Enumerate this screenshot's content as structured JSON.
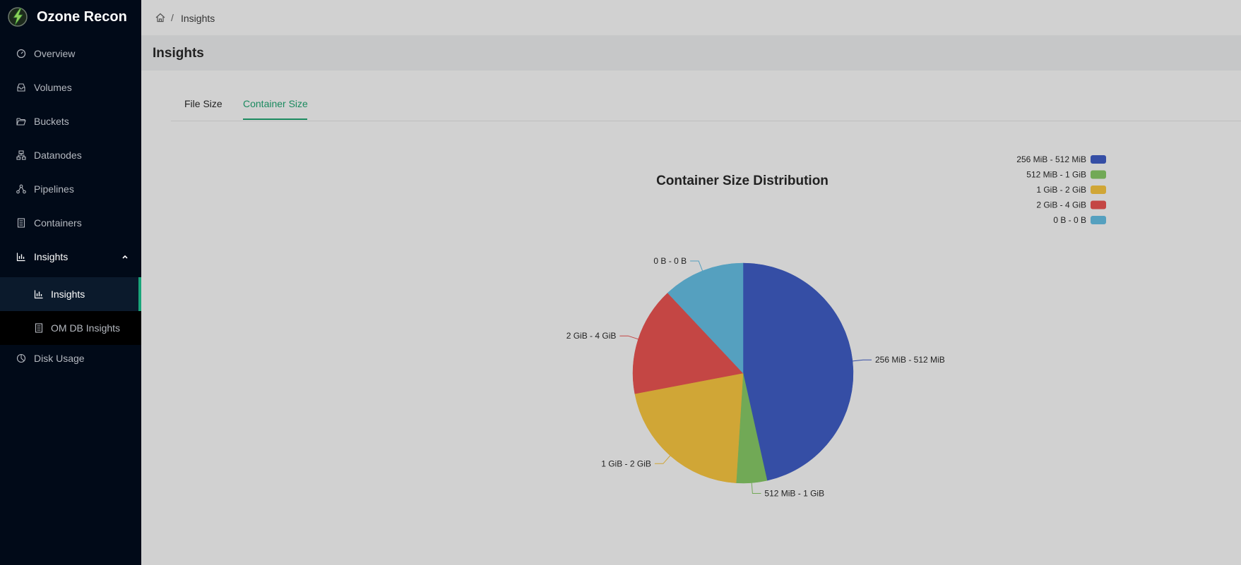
{
  "app": {
    "title": "Ozone Recon"
  },
  "sidebar": {
    "items": [
      {
        "label": "Overview",
        "icon": "dashboard-icon"
      },
      {
        "label": "Volumes",
        "icon": "inbox-icon"
      },
      {
        "label": "Buckets",
        "icon": "folder-open-icon"
      },
      {
        "label": "Datanodes",
        "icon": "cluster-icon"
      },
      {
        "label": "Pipelines",
        "icon": "deployment-unit-icon"
      },
      {
        "label": "Containers",
        "icon": "container-icon"
      },
      {
        "label": "Insights",
        "icon": "bar-chart-icon",
        "expanded": true
      },
      {
        "label": "Disk Usage",
        "icon": "pie-chart-icon"
      }
    ],
    "insights_submenu": [
      {
        "label": "Insights",
        "icon": "bar-chart-icon",
        "active": true
      },
      {
        "label": "OM DB Insights",
        "icon": "database-icon"
      }
    ]
  },
  "breadcrumb": {
    "separator": "/",
    "current": "Insights"
  },
  "page": {
    "title": "Insights"
  },
  "tabs": [
    {
      "label": "File Size",
      "active": false
    },
    {
      "label": "Container Size",
      "active": true
    }
  ],
  "colors": {
    "accent": "#1b8a5f",
    "sidebar_bg": "#010a18"
  },
  "chart_data": {
    "type": "pie",
    "title": "Container Size Distribution",
    "legend_position": "top-right",
    "categories": [
      "256 MiB - 512 MiB",
      "512 MiB - 1 GiB",
      "1 GiB - 2 GiB",
      "2 GiB - 4 GiB",
      "0 B - 0 B"
    ],
    "values": [
      46.5,
      4.5,
      21,
      16,
      12
    ],
    "colors": [
      "#354ea5",
      "#71a956",
      "#d0a636",
      "#c44644",
      "#55a0bf"
    ]
  }
}
